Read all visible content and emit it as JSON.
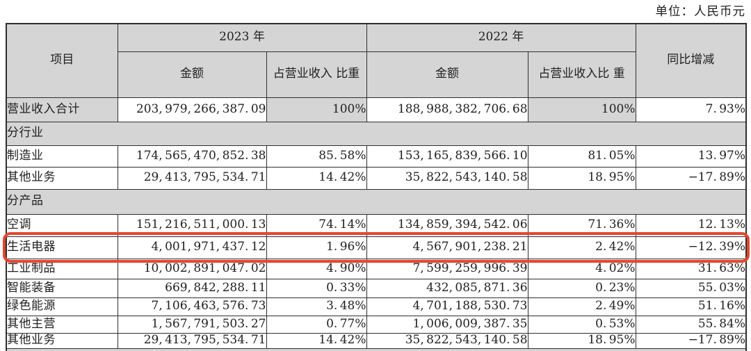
{
  "page": {
    "unit_label": "单位：人民币元"
  },
  "colors": {
    "header_bg": "#d5d5d5",
    "table_border": "#2e2e2e",
    "highlight_red": "#e5462e",
    "text": "#1f1f1f"
  },
  "table": {
    "headers": {
      "item": "项目",
      "year_2023": "2023 年",
      "year_2022": "2022 年",
      "amount_2023": "金额",
      "pct_2023": "占营业收入\n比重",
      "amount_2022": "金额",
      "pct_2022": "占营业收入比\n重",
      "yoy": "同比增减"
    },
    "rows": [
      {
        "label": "营业收入合计",
        "amount_2023": "203,979,266,387.09",
        "pct_2023": "100%",
        "amount_2022": "188,988,382,706.68",
        "pct_2022": "100%",
        "yoy": "7.93%"
      },
      {
        "label": "分行业"
      },
      {
        "label": "制造业",
        "amount_2023": "174,565,470,852.38",
        "pct_2023": "85.58%",
        "amount_2022": "153,165,839,566.10",
        "pct_2022": "81.05%",
        "yoy": "13.97%"
      },
      {
        "label": "其他业务",
        "amount_2023": "29,413,795,534.71",
        "pct_2023": "14.42%",
        "amount_2022": "35,822,543,140.58",
        "pct_2022": "18.95%",
        "yoy": "−17.89%"
      },
      {
        "label": "分产品"
      },
      {
        "label": "空调",
        "amount_2023": "151,216,511,000.13",
        "pct_2023": "74.14%",
        "amount_2022": "134,859,394,542.06",
        "pct_2022": "71.36%",
        "yoy": "12.13%"
      },
      {
        "label": "生活电器",
        "amount_2023": "4,001,971,437.12",
        "pct_2023": "1.96%",
        "amount_2022": "4,567,901,238.21",
        "pct_2022": "2.42%",
        "yoy": "−12.39%",
        "highlighted": true
      },
      {
        "label": "工业制品",
        "amount_2023": "10,002,891,047.02",
        "pct_2023": "4.90%",
        "amount_2022": "7,599,259,996.39",
        "pct_2022": "4.02%",
        "yoy": "31.63%"
      },
      {
        "label": "智能装备",
        "amount_2023": "669,842,288.11",
        "pct_2023": "0.33%",
        "amount_2022": "432,085,871.36",
        "pct_2022": "0.23%",
        "yoy": "55.03%"
      },
      {
        "label": "绿色能源",
        "amount_2023": "7,106,463,576.73",
        "pct_2023": "3.48%",
        "amount_2022": "4,701,188,530.73",
        "pct_2022": "2.49%",
        "yoy": "51.16%"
      },
      {
        "label": "其他主营",
        "amount_2023": "1,567,791,503.27",
        "pct_2023": "0.77%",
        "amount_2022": "1,006,009,387.35",
        "pct_2022": "0.53%",
        "yoy": "55.84%"
      },
      {
        "label": "其他业务",
        "amount_2023": "29,413,795,534.71",
        "pct_2023": "14.42%",
        "amount_2022": "35,822,543,140.58",
        "pct_2022": "18.95%",
        "yoy": "−17.89%"
      }
    ]
  },
  "highlight": {
    "target_row_label": "生活电器"
  }
}
